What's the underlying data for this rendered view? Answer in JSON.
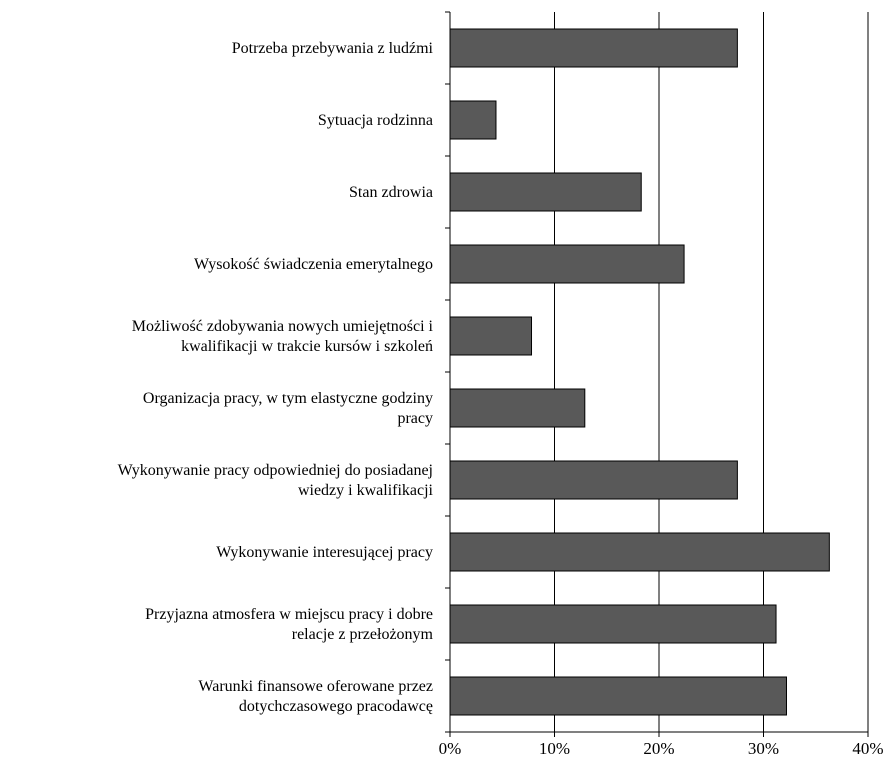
{
  "chart_data": {
    "type": "bar",
    "orientation": "horizontal",
    "title": "",
    "xlabel": "",
    "ylabel": "",
    "categories": [
      [
        "Potrzeba przebywania z ludźmi"
      ],
      [
        "Sytuacja rodzinna"
      ],
      [
        "Stan zdrowia"
      ],
      [
        "Wysokość świadczenia emerytalnego"
      ],
      [
        "Możliwość zdobywania nowych umiejętności i",
        "kwalifikacji w trakcie kursów i szkoleń"
      ],
      [
        "Organizacja pracy, w tym elastyczne godziny",
        "pracy"
      ],
      [
        "Wykonywanie pracy odpowiedniej do posiadanej",
        "wiedzy i kwalifikacji"
      ],
      [
        "Wykonywanie interesującej pracy"
      ],
      [
        "Przyjazna atmosfera w miejscu pracy i dobre",
        "relacje z przełożonym"
      ],
      [
        "Warunki finansowe oferowane przez",
        "dotychczasowego pracodawcę"
      ]
    ],
    "values": [
      27.5,
      4.4,
      18.3,
      22.4,
      7.8,
      12.9,
      27.5,
      36.3,
      31.2,
      32.2
    ],
    "xlim": [
      0,
      40
    ],
    "ticks": [
      0,
      10,
      20,
      30,
      40
    ],
    "tick_labels": [
      "0%",
      "10%",
      "20%",
      "30%",
      "40%"
    ],
    "grid": true,
    "legend": "none",
    "colors": {
      "bar_fill": "#595959",
      "bar_stroke": "#000000",
      "grid": "#000000",
      "axis": "#000000"
    }
  }
}
